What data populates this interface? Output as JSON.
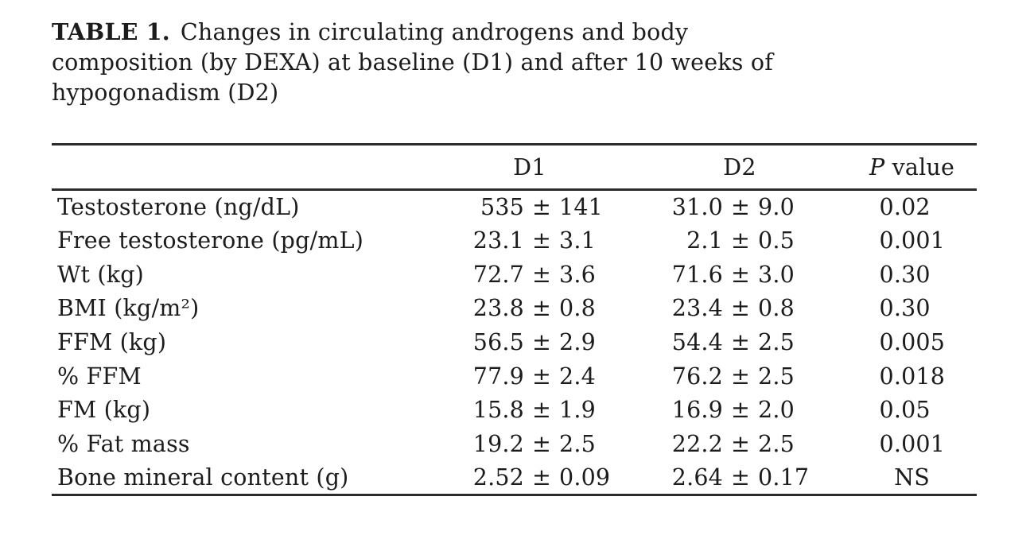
{
  "caption": {
    "label": "TABLE 1.",
    "lines": [
      "Changes in circulating androgens and body",
      "composition (by DEXA) at baseline (D1) and after 10 weeks of",
      "hypogonadism (D2)"
    ]
  },
  "table": {
    "plus_minus": "±",
    "header": {
      "stub": "",
      "d1": "D1",
      "d2": "D2",
      "p_italic": "P",
      "p_rest": "value"
    },
    "not_significant_label": "NS",
    "rows": [
      {
        "label": "Testosterone (ng/dL)",
        "d1": {
          "mean": "535",
          "sd": "141"
        },
        "d2": {
          "mean": "31.0",
          "sd": "9.0"
        },
        "p": "0.02"
      },
      {
        "label": "Free testosterone (pg/mL)",
        "d1": {
          "mean": "23.1",
          "sd": "3.1"
        },
        "d2": {
          "mean": "2.1",
          "sd": "0.5"
        },
        "p": "0.001"
      },
      {
        "label": "Wt (kg)",
        "d1": {
          "mean": "72.7",
          "sd": "3.6"
        },
        "d2": {
          "mean": "71.6",
          "sd": "3.0"
        },
        "p": "0.30"
      },
      {
        "label": "BMI (kg/m²)",
        "d1": {
          "mean": "23.8",
          "sd": "0.8"
        },
        "d2": {
          "mean": "23.4",
          "sd": "0.8"
        },
        "p": "0.30"
      },
      {
        "label": "FFM (kg)",
        "d1": {
          "mean": "56.5",
          "sd": "2.9"
        },
        "d2": {
          "mean": "54.4",
          "sd": "2.5"
        },
        "p": "0.005"
      },
      {
        "label": "% FFM",
        "d1": {
          "mean": "77.9",
          "sd": "2.4"
        },
        "d2": {
          "mean": "76.2",
          "sd": "2.5"
        },
        "p": "0.018"
      },
      {
        "label": "FM (kg)",
        "d1": {
          "mean": "15.8",
          "sd": "1.9"
        },
        "d2": {
          "mean": "16.9",
          "sd": "2.0"
        },
        "p": "0.05"
      },
      {
        "label": "% Fat mass",
        "d1": {
          "mean": "19.2",
          "sd": "2.5"
        },
        "d2": {
          "mean": "22.2",
          "sd": "2.5"
        },
        "p": "0.001"
      },
      {
        "label": "Bone mineral content (g)",
        "d1": {
          "mean": "2.52",
          "sd": "0.09"
        },
        "d2": {
          "mean": "2.64",
          "sd": "0.17"
        },
        "p": "NS"
      }
    ]
  },
  "colors": {
    "background": "#ffffff",
    "text": "#1c1c1c",
    "rule": "#2b2b2b"
  }
}
